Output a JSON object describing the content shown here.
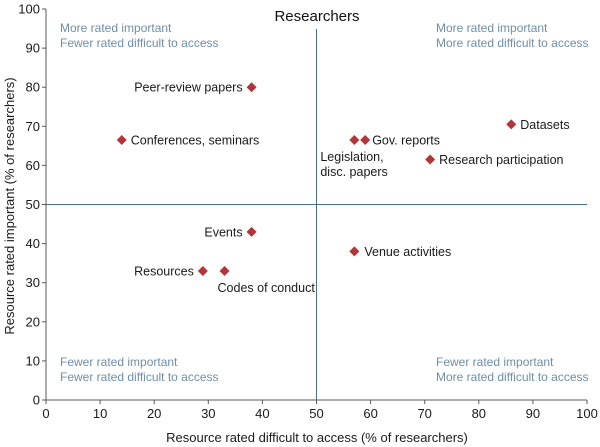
{
  "chart_data": {
    "type": "scatter",
    "title": "Researchers",
    "xlabel": "Resource rated difficult to access (% of researchers)",
    "ylabel": "Resource rated important (% of researchers)",
    "xlim": [
      0,
      100
    ],
    "ylim": [
      0,
      100
    ],
    "xticks": [
      0,
      10,
      20,
      30,
      40,
      50,
      60,
      70,
      80,
      90,
      100
    ],
    "yticks": [
      0,
      10,
      20,
      30,
      40,
      50,
      60,
      70,
      80,
      90,
      100
    ],
    "divider_x": 50,
    "divider_y": 50,
    "grid": false,
    "points": [
      {
        "label": "Peer-review papers",
        "x": 38,
        "y": 80
      },
      {
        "label": "Conferences, seminars",
        "x": 14,
        "y": 66.5
      },
      {
        "label": "Legislation, disc. papers",
        "x": 57,
        "y": 66.5
      },
      {
        "label": "Gov. reports",
        "x": 59,
        "y": 66.5
      },
      {
        "label": "Datasets",
        "x": 86,
        "y": 70.5
      },
      {
        "label": "Research participation",
        "x": 71,
        "y": 61.5
      },
      {
        "label": "Events",
        "x": 38,
        "y": 43
      },
      {
        "label": "Venue activities",
        "x": 57,
        "y": 38
      },
      {
        "label": "Resources",
        "x": 29,
        "y": 33
      },
      {
        "label": "Codes of conduct",
        "x": 33,
        "y": 33
      }
    ],
    "quadrant_labels": {
      "top_left": [
        "More rated important",
        "Fewer rated difficult to access"
      ],
      "top_right": [
        "More rated important",
        "More rated difficult to access"
      ],
      "bottom_left": [
        "Fewer rated important",
        "Fewer rated difficult to access"
      ],
      "bottom_right": [
        "Fewer rated important",
        "More rated difficult to access"
      ]
    },
    "colors": {
      "marker": "#b5343a",
      "axis": "#5a5a5a",
      "divider": "#4a6f8c",
      "quadrant_text": "#6f8ea6"
    }
  }
}
